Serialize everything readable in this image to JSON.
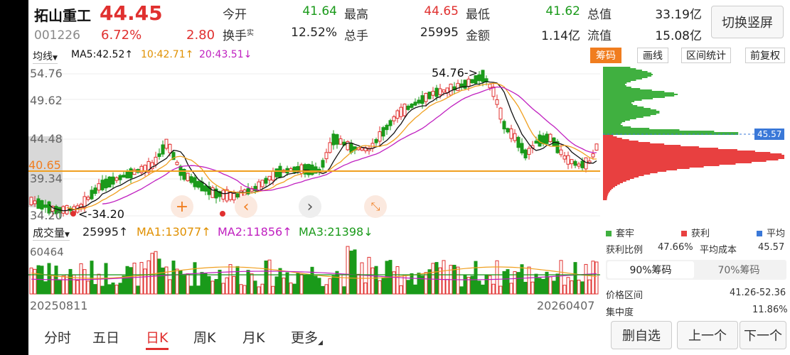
{
  "colors": {
    "up": "#e0302f",
    "down": "#1a9a1a",
    "accent": "#f07d1f",
    "ma5": "#111111",
    "ma10": "#f0a020",
    "ma20": "#c020c0",
    "profit": "#e84040",
    "trapped": "#40b040",
    "avg": "#3a78d8"
  },
  "header": {
    "name": "拓山重工",
    "price": "44.45",
    "code": "001226",
    "change_pct": "6.72%",
    "change_amt": "2.80",
    "stats": [
      {
        "label": "今开",
        "value": "41.64",
        "color": "down"
      },
      {
        "label": "最高",
        "value": "44.65",
        "color": "up"
      },
      {
        "label": "最低",
        "value": "41.62",
        "color": "down"
      },
      {
        "label": "总值",
        "value": "33.19亿",
        "color": "plain"
      },
      {
        "label": "换手",
        "sup": "实",
        "value": "12.52%",
        "color": "plain"
      },
      {
        "label": "总手",
        "value": "25995",
        "color": "plain"
      },
      {
        "label": "金额",
        "value": "1.14亿",
        "color": "plain"
      },
      {
        "label": "流值",
        "value": "15.08亿",
        "color": "plain"
      }
    ],
    "switch_label": "切换竖屏"
  },
  "toolbar": {
    "mode": "均线",
    "ma5": "MA5:42.52",
    "ma10": "10:42.71",
    "ma20": "20:43.51",
    "arrow_up": "↑",
    "arrow_down": "↓"
  },
  "right_tabs": [
    "筹码",
    "画线",
    "区间统计",
    "前复权"
  ],
  "price_axis": [
    "54.76",
    "49.62",
    "44.48",
    "39.34",
    "34.20"
  ],
  "highlight_price": "40.65",
  "high_annot": "54.76->",
  "low_annot": "<-34.20",
  "vol_toolbar": {
    "label": "成交量",
    "vol": "25995",
    "ma1": "MA1:13077",
    "ma2": "MA2:11856",
    "ma3": "MA3:21398",
    "up": "↑",
    "down": "↓"
  },
  "vol_axis_top": "60464",
  "dates": {
    "start": "20250811",
    "end": "20260407"
  },
  "bottom_tabs": [
    "分时",
    "五日",
    "日K",
    "周K",
    "月K",
    "更多"
  ],
  "bottom_buttons": [
    "删自选",
    "上一个",
    "下一个"
  ],
  "chip": {
    "avg_price": "45.57",
    "legend": [
      "套牢",
      "获利",
      "平均"
    ],
    "profit_ratio_label": "获利比例",
    "profit_ratio": "47.66%",
    "avg_cost_label": "平均成本",
    "avg_cost": "45.57",
    "tabs": [
      "90%筹码",
      "70%筹码"
    ],
    "range_label": "价格区间",
    "range": "41.26-52.36",
    "conc_label": "集中度",
    "conc": "11.86%"
  }
}
